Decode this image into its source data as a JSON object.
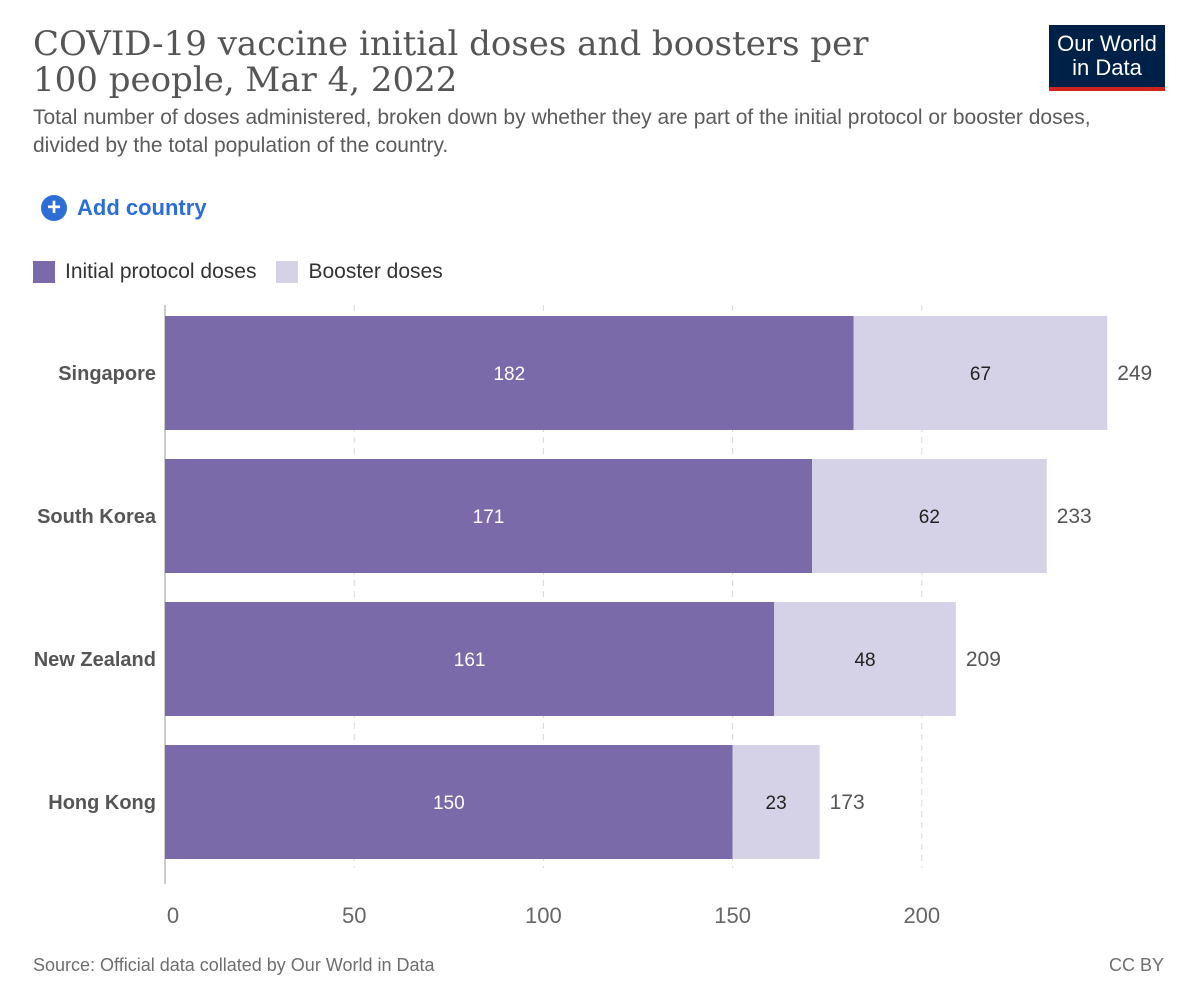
{
  "title": "COVID-19 vaccine initial doses and boosters per 100 people, Mar 4, 2022",
  "subtitle": "Total number of doses administered, broken down by whether they are part of the initial protocol or booster doses, divided by the total population of the country.",
  "logo": {
    "line1": "Our World",
    "line2": "in Data"
  },
  "add_country_label": "Add country",
  "footer": {
    "source": "Source: Official data collated by Our World in Data",
    "license": "CC BY"
  },
  "colors": {
    "initial": "#7b6aa9",
    "booster": "#d5d1e6",
    "accent": "#2d6ed6"
  },
  "chart_data": {
    "type": "bar",
    "orientation": "horizontal",
    "stacked": true,
    "title": "COVID-19 vaccine initial doses and boosters per 100 people, Mar 4, 2022",
    "categories": [
      "Singapore",
      "South Korea",
      "New Zealand",
      "Hong Kong"
    ],
    "series": [
      {
        "name": "Initial protocol doses",
        "values": [
          182,
          171,
          161,
          150
        ]
      },
      {
        "name": "Booster doses",
        "values": [
          67,
          62,
          48,
          23
        ]
      }
    ],
    "totals": [
      249,
      233,
      209,
      173
    ],
    "xlim": [
      0,
      250
    ],
    "xticks": [
      0,
      50,
      100,
      150,
      200
    ],
    "xlabel": "",
    "ylabel": "",
    "grid": true,
    "legend": "top-left"
  }
}
